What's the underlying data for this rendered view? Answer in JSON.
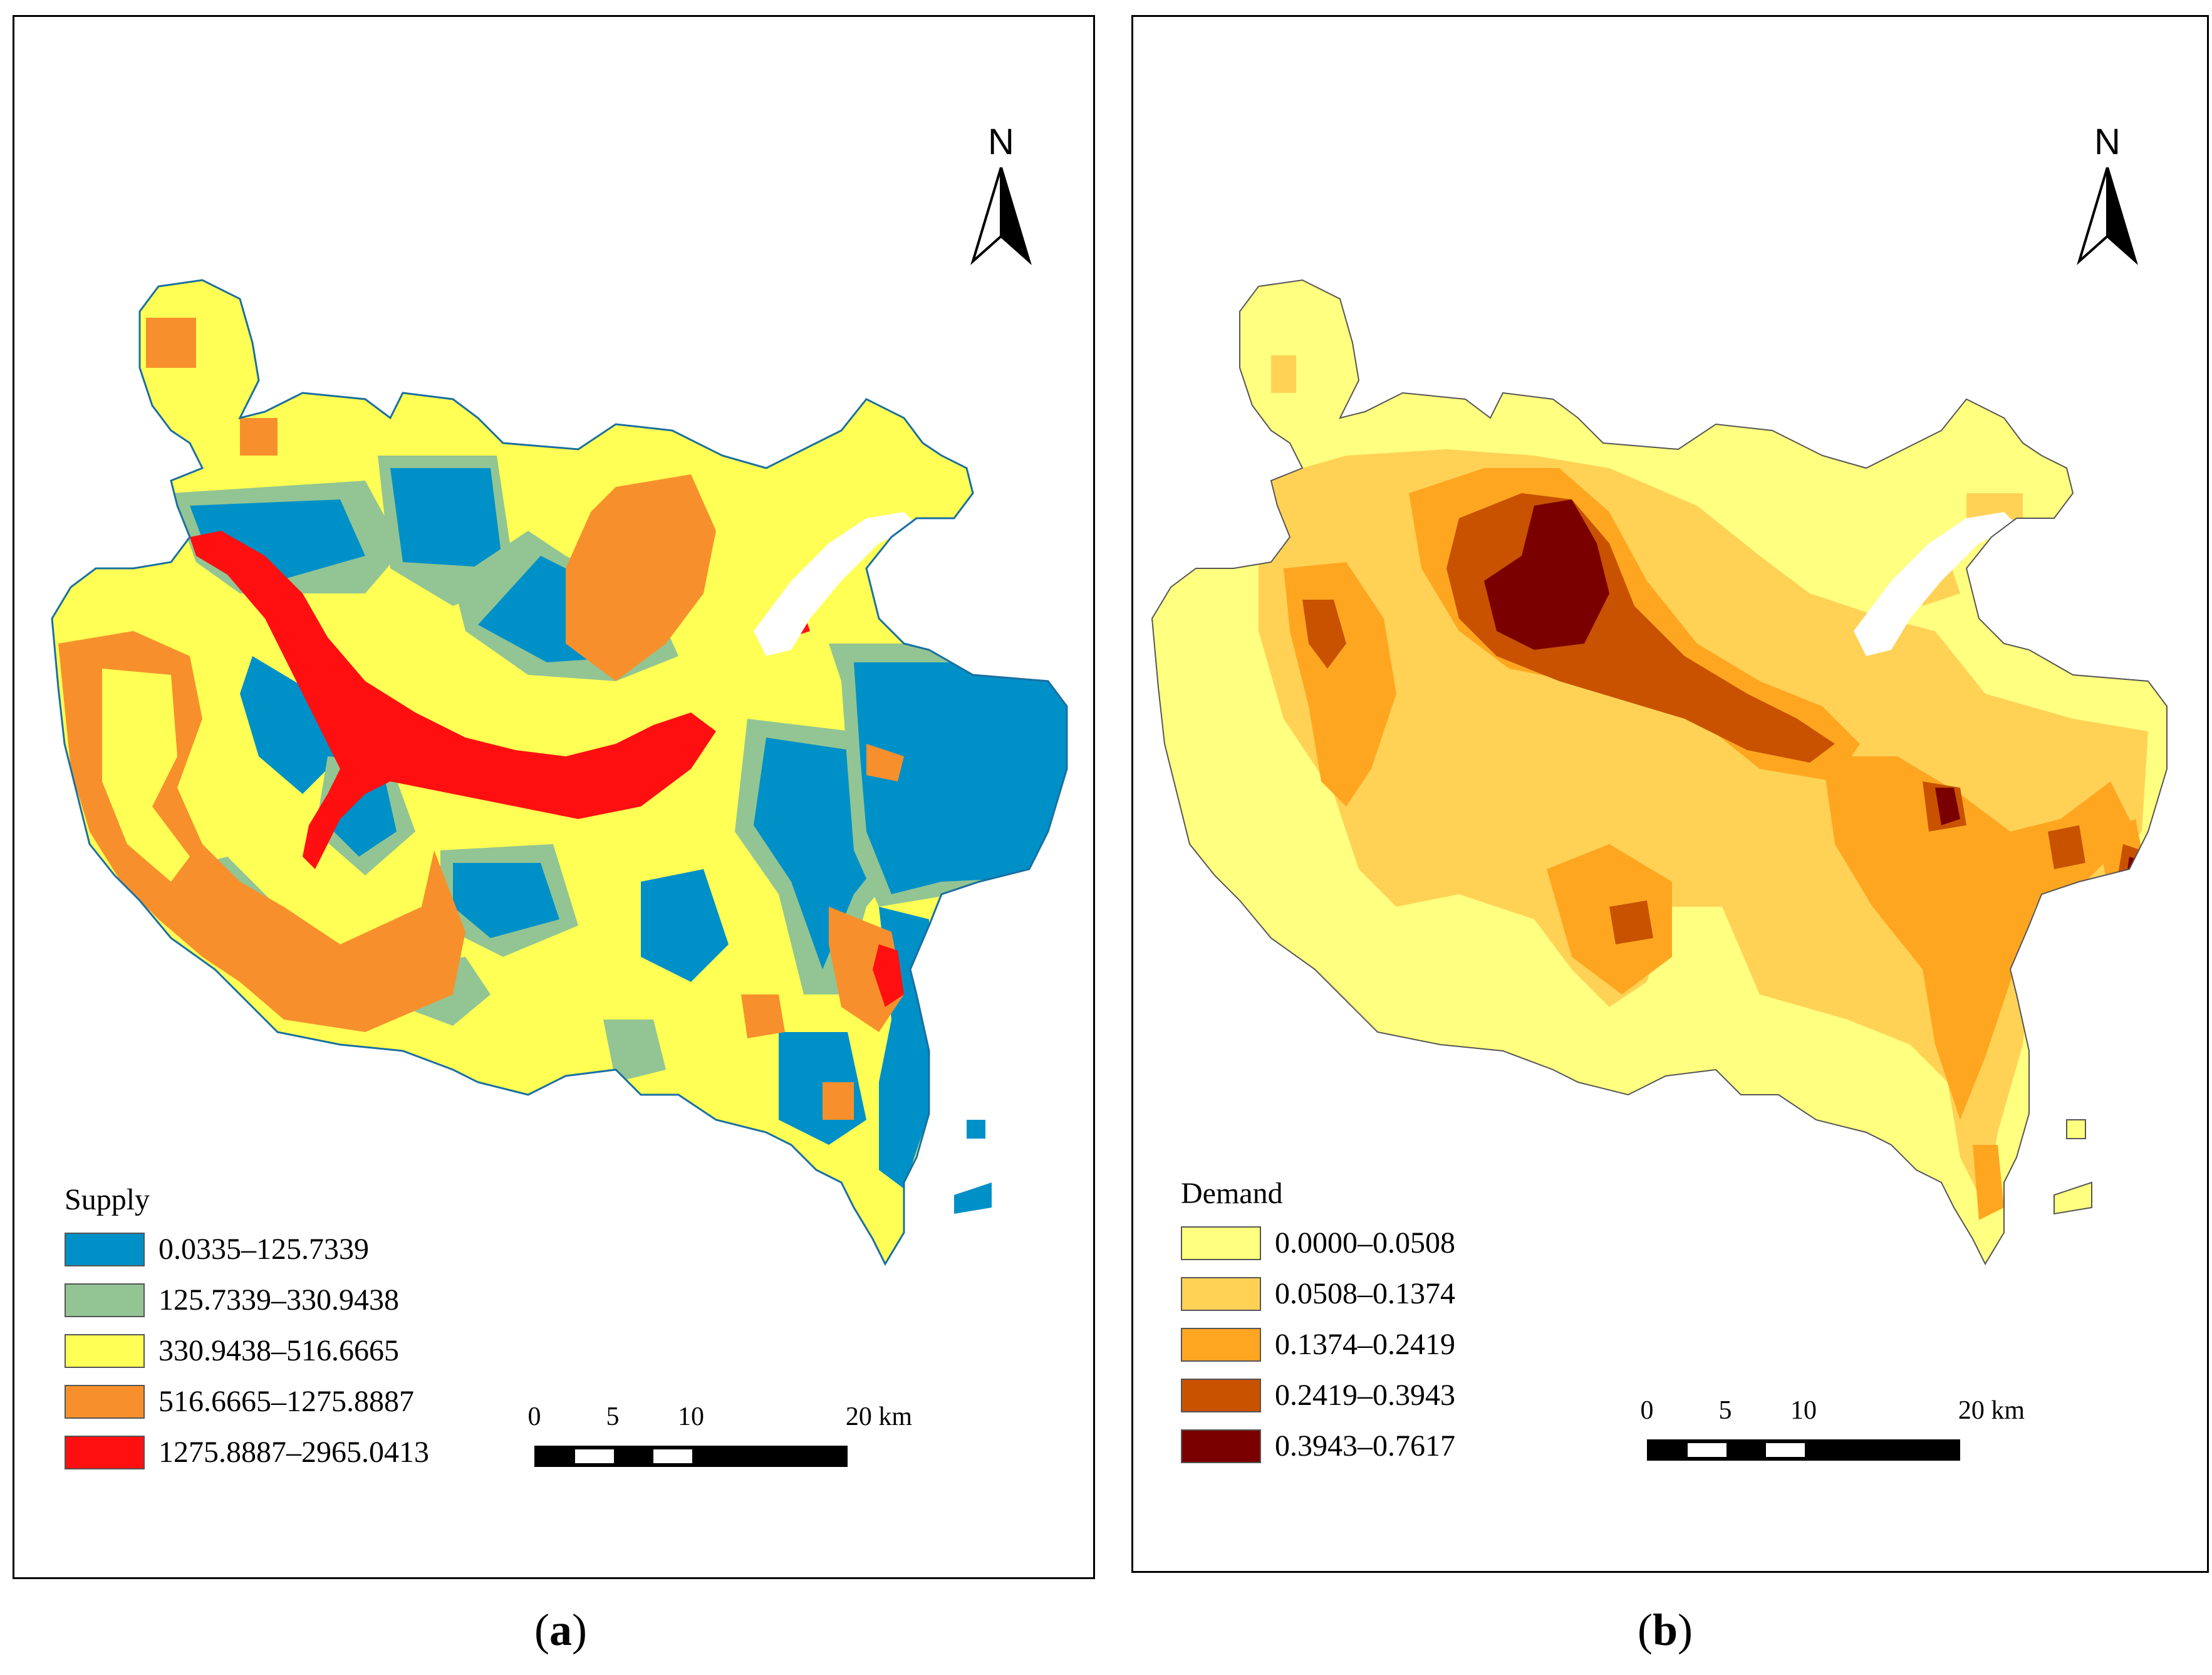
{
  "panels": [
    {
      "id": "a",
      "north_label": "N",
      "legend": {
        "title": "Supply",
        "classes": [
          {
            "label": "0.0335–125.7339",
            "color": "#0090c8"
          },
          {
            "label": "125.7339–330.9438",
            "color": "#92c593"
          },
          {
            "label": "330.9438–516.6665",
            "color": "#ffff55"
          },
          {
            "label": "516.6665–1275.8887",
            "color": "#f7902c"
          },
          {
            "label": "1275.8887–2965.0413",
            "color": "#ff0f0f"
          }
        ]
      },
      "scale": {
        "ticks": [
          "0",
          "5",
          "10",
          "20 km"
        ]
      },
      "caption": {
        "open": "(",
        "letter": "a",
        "close": ")"
      }
    },
    {
      "id": "b",
      "north_label": "N",
      "legend": {
        "title": "Demand",
        "classes": [
          {
            "label": "0.0000–0.0508",
            "color": "#ffff80"
          },
          {
            "label": "0.0508–0.1374",
            "color": "#ffd256"
          },
          {
            "label": "0.1374–0.2419",
            "color": "#ffa621"
          },
          {
            "label": "0.2419–0.3943",
            "color": "#c85200"
          },
          {
            "label": "0.3943–0.7617",
            "color": "#7a0000"
          }
        ]
      },
      "scale": {
        "ticks": [
          "0",
          "5",
          "10",
          "20 km"
        ]
      },
      "caption": {
        "open": "(",
        "letter": "b",
        "close": ")"
      }
    }
  ]
}
